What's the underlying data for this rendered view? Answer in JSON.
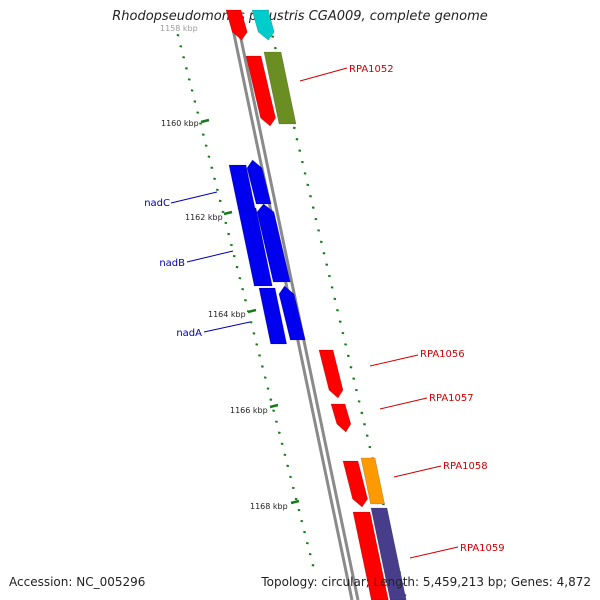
{
  "title": "Rhodopseudomonas palustris CGA009, complete genome",
  "footer": {
    "accession": "Accession: NC_005296",
    "topology": "Topology: circular; Length: 5,459,213 bp; Genes: 4,872"
  },
  "kbp_labels": [
    {
      "id": "kbp-1158",
      "text": "1158 kbp",
      "faded": true
    },
    {
      "id": "kbp-1160",
      "text": "1160 kbp"
    },
    {
      "id": "kbp-1162",
      "text": "1162 kbp"
    },
    {
      "id": "kbp-1164",
      "text": "1164 kbp"
    },
    {
      "id": "kbp-1166",
      "text": "1166 kbp"
    },
    {
      "id": "kbp-1168",
      "text": "1168 kbp"
    }
  ],
  "gene_labels": [
    {
      "id": "RPA1052",
      "text": "RPA1052",
      "color": "#cc0000"
    },
    {
      "id": "nadC",
      "text": "nadC",
      "color": "#0000b0"
    },
    {
      "id": "nadB",
      "text": "nadB",
      "color": "#0000b0"
    },
    {
      "id": "nadA",
      "text": "nadA",
      "color": "#0000b0"
    },
    {
      "id": "RPA1056",
      "text": "RPA1056",
      "color": "#cc0000"
    },
    {
      "id": "RPA1057",
      "text": "RPA1057",
      "color": "#cc0000"
    },
    {
      "id": "RPA1058",
      "text": "RPA1058",
      "color": "#cc0000"
    },
    {
      "id": "RPA1059",
      "text": "RPA1059",
      "color": "#cc0000"
    }
  ],
  "colors": {
    "backbone": "#8a8a8a",
    "tick": "#1a7a1a",
    "red": "#ff0000",
    "olive": "#6b8e23",
    "blue": "#0000ee",
    "orange": "#ff9900",
    "purple": "#483d8b",
    "cyan": "#00cccc"
  }
}
